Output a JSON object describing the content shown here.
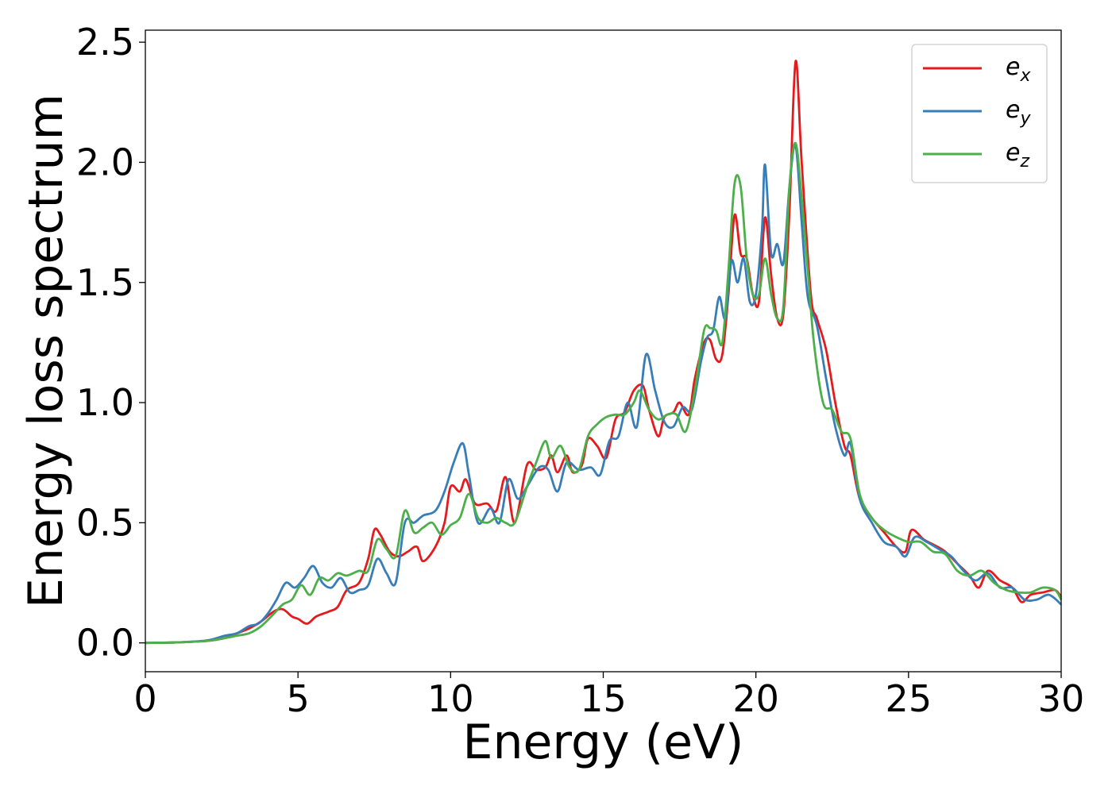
{
  "chart_data": {
    "type": "line",
    "title": "",
    "xlabel": "Energy (eV)",
    "ylabel": "Energy loss spectrum",
    "xlim": [
      0,
      30
    ],
    "ylim": [
      -0.12,
      2.55
    ],
    "xticks": [
      0,
      5,
      10,
      15,
      20,
      25,
      30
    ],
    "xtick_labels": [
      "0",
      "5",
      "10",
      "15",
      "20",
      "25",
      "30"
    ],
    "yticks": [
      0.0,
      0.5,
      1.0,
      1.5,
      2.0,
      2.5
    ],
    "ytick_labels": [
      "0.0",
      "0.5",
      "1.0",
      "1.5",
      "2.0",
      "2.5"
    ],
    "grid": false,
    "legend_position": "top-right",
    "series": [
      {
        "name": "e_x",
        "legend_base": "e",
        "legend_sub": "x",
        "color": "#e41a1c",
        "points": [
          [
            0,
            0
          ],
          [
            1,
            0.002
          ],
          [
            2,
            0.008
          ],
          [
            2.6,
            0.02
          ],
          [
            3,
            0.04
          ],
          [
            3.4,
            0.06
          ],
          [
            3.8,
            0.09
          ],
          [
            4.2,
            0.13
          ],
          [
            4.5,
            0.14
          ],
          [
            4.8,
            0.11
          ],
          [
            5,
            0.1
          ],
          [
            5.3,
            0.08
          ],
          [
            5.6,
            0.11
          ],
          [
            6,
            0.13
          ],
          [
            6.3,
            0.15
          ],
          [
            6.6,
            0.22
          ],
          [
            7,
            0.25
          ],
          [
            7.3,
            0.35
          ],
          [
            7.5,
            0.47
          ],
          [
            7.7,
            0.45
          ],
          [
            8,
            0.38
          ],
          [
            8.3,
            0.36
          ],
          [
            8.6,
            0.38
          ],
          [
            8.9,
            0.4
          ],
          [
            9.1,
            0.34
          ],
          [
            9.5,
            0.4
          ],
          [
            9.8,
            0.5
          ],
          [
            10,
            0.65
          ],
          [
            10.3,
            0.63
          ],
          [
            10.5,
            0.68
          ],
          [
            10.8,
            0.58
          ],
          [
            11.2,
            0.58
          ],
          [
            11.5,
            0.55
          ],
          [
            11.8,
            0.69
          ],
          [
            12.1,
            0.5
          ],
          [
            12.5,
            0.74
          ],
          [
            12.8,
            0.72
          ],
          [
            13.1,
            0.73
          ],
          [
            13.3,
            0.78
          ],
          [
            13.5,
            0.71
          ],
          [
            13.8,
            0.78
          ],
          [
            14,
            0.71
          ],
          [
            14.3,
            0.74
          ],
          [
            14.5,
            0.85
          ],
          [
            14.8,
            0.82
          ],
          [
            15.1,
            0.77
          ],
          [
            15.4,
            0.93
          ],
          [
            15.7,
            0.96
          ],
          [
            16,
            1.05
          ],
          [
            16.3,
            1.07
          ],
          [
            16.5,
            0.97
          ],
          [
            16.8,
            0.86
          ],
          [
            17,
            0.94
          ],
          [
            17.3,
            0.96
          ],
          [
            17.5,
            1.0
          ],
          [
            17.8,
            0.95
          ],
          [
            18,
            1.1
          ],
          [
            18.3,
            1.25
          ],
          [
            18.5,
            1.26
          ],
          [
            18.7,
            1.18
          ],
          [
            18.9,
            1.2
          ],
          [
            19.1,
            1.45
          ],
          [
            19.3,
            1.78
          ],
          [
            19.5,
            1.62
          ],
          [
            19.7,
            1.6
          ],
          [
            19.9,
            1.45
          ],
          [
            20.1,
            1.42
          ],
          [
            20.3,
            1.77
          ],
          [
            20.5,
            1.53
          ],
          [
            20.7,
            1.35
          ],
          [
            20.9,
            1.37
          ],
          [
            21.1,
            1.8
          ],
          [
            21.3,
            2.42
          ],
          [
            21.5,
            2.0
          ],
          [
            21.8,
            1.45
          ],
          [
            22,
            1.35
          ],
          [
            22.3,
            1.22
          ],
          [
            22.6,
            1.0
          ],
          [
            22.9,
            0.82
          ],
          [
            23.1,
            0.78
          ],
          [
            23.4,
            0.6
          ],
          [
            23.8,
            0.52
          ],
          [
            24.2,
            0.46
          ],
          [
            24.6,
            0.4
          ],
          [
            24.9,
            0.38
          ],
          [
            25.1,
            0.47
          ],
          [
            25.5,
            0.43
          ],
          [
            25.8,
            0.41
          ],
          [
            26.2,
            0.38
          ],
          [
            26.6,
            0.33
          ],
          [
            27,
            0.28
          ],
          [
            27.3,
            0.23
          ],
          [
            27.6,
            0.3
          ],
          [
            28,
            0.26
          ],
          [
            28.4,
            0.23
          ],
          [
            28.7,
            0.17
          ],
          [
            29,
            0.2
          ],
          [
            29.4,
            0.21
          ],
          [
            29.8,
            0.22
          ],
          [
            30,
            0.19
          ]
        ]
      },
      {
        "name": "e_y",
        "legend_base": "e",
        "legend_sub": "y",
        "color": "#377eb8",
        "points": [
          [
            0,
            0
          ],
          [
            1,
            0.002
          ],
          [
            2,
            0.01
          ],
          [
            2.6,
            0.03
          ],
          [
            3,
            0.04
          ],
          [
            3.4,
            0.07
          ],
          [
            3.7,
            0.08
          ],
          [
            4,
            0.12
          ],
          [
            4.3,
            0.18
          ],
          [
            4.6,
            0.25
          ],
          [
            4.9,
            0.23
          ],
          [
            5.2,
            0.27
          ],
          [
            5.5,
            0.32
          ],
          [
            5.8,
            0.25
          ],
          [
            6.1,
            0.23
          ],
          [
            6.4,
            0.27
          ],
          [
            6.7,
            0.21
          ],
          [
            7,
            0.22
          ],
          [
            7.3,
            0.24
          ],
          [
            7.6,
            0.35
          ],
          [
            7.9,
            0.29
          ],
          [
            8.2,
            0.25
          ],
          [
            8.5,
            0.5
          ],
          [
            8.8,
            0.5
          ],
          [
            9.1,
            0.53
          ],
          [
            9.5,
            0.55
          ],
          [
            9.8,
            0.63
          ],
          [
            10.1,
            0.75
          ],
          [
            10.4,
            0.83
          ],
          [
            10.6,
            0.7
          ],
          [
            10.9,
            0.5
          ],
          [
            11.3,
            0.56
          ],
          [
            11.6,
            0.5
          ],
          [
            11.9,
            0.68
          ],
          [
            12.2,
            0.6
          ],
          [
            12.5,
            0.65
          ],
          [
            12.9,
            0.73
          ],
          [
            13.2,
            0.72
          ],
          [
            13.5,
            0.63
          ],
          [
            13.8,
            0.75
          ],
          [
            14.2,
            0.72
          ],
          [
            14.6,
            0.73
          ],
          [
            14.9,
            0.7
          ],
          [
            15.2,
            0.84
          ],
          [
            15.5,
            0.86
          ],
          [
            15.8,
            1.0
          ],
          [
            16.1,
            0.9
          ],
          [
            16.4,
            1.2
          ],
          [
            16.7,
            1.05
          ],
          [
            17,
            0.92
          ],
          [
            17.3,
            0.9
          ],
          [
            17.6,
            0.98
          ],
          [
            17.9,
            0.97
          ],
          [
            18.2,
            1.17
          ],
          [
            18.4,
            1.27
          ],
          [
            18.6,
            1.3
          ],
          [
            18.8,
            1.44
          ],
          [
            19.0,
            1.35
          ],
          [
            19.2,
            1.59
          ],
          [
            19.4,
            1.5
          ],
          [
            19.6,
            1.6
          ],
          [
            19.8,
            1.42
          ],
          [
            20.0,
            1.45
          ],
          [
            20.2,
            1.72
          ],
          [
            20.3,
            1.99
          ],
          [
            20.5,
            1.62
          ],
          [
            20.7,
            1.66
          ],
          [
            20.9,
            1.58
          ],
          [
            21.1,
            1.9
          ],
          [
            21.3,
            2.07
          ],
          [
            21.5,
            1.75
          ],
          [
            21.7,
            1.44
          ],
          [
            22,
            1.32
          ],
          [
            22.3,
            1.1
          ],
          [
            22.6,
            0.9
          ],
          [
            22.9,
            0.78
          ],
          [
            23.1,
            0.83
          ],
          [
            23.4,
            0.6
          ],
          [
            23.8,
            0.5
          ],
          [
            24.2,
            0.42
          ],
          [
            24.6,
            0.4
          ],
          [
            24.9,
            0.36
          ],
          [
            25.2,
            0.44
          ],
          [
            25.6,
            0.42
          ],
          [
            26,
            0.39
          ],
          [
            26.4,
            0.36
          ],
          [
            26.8,
            0.3
          ],
          [
            27.2,
            0.26
          ],
          [
            27.6,
            0.29
          ],
          [
            28,
            0.23
          ],
          [
            28.4,
            0.23
          ],
          [
            28.8,
            0.18
          ],
          [
            29.2,
            0.18
          ],
          [
            29.6,
            0.2
          ],
          [
            30,
            0.16
          ]
        ]
      },
      {
        "name": "e_z",
        "legend_base": "e",
        "legend_sub": "z",
        "color": "#4daf4a",
        "points": [
          [
            0,
            0
          ],
          [
            1,
            0.002
          ],
          [
            2,
            0.008
          ],
          [
            2.6,
            0.02
          ],
          [
            3,
            0.03
          ],
          [
            3.4,
            0.04
          ],
          [
            3.8,
            0.07
          ],
          [
            4.2,
            0.12
          ],
          [
            4.5,
            0.16
          ],
          [
            4.8,
            0.18
          ],
          [
            5.1,
            0.24
          ],
          [
            5.4,
            0.2
          ],
          [
            5.7,
            0.27
          ],
          [
            6,
            0.26
          ],
          [
            6.3,
            0.29
          ],
          [
            6.6,
            0.28
          ],
          [
            7,
            0.3
          ],
          [
            7.3,
            0.3
          ],
          [
            7.6,
            0.43
          ],
          [
            7.9,
            0.39
          ],
          [
            8.2,
            0.36
          ],
          [
            8.5,
            0.55
          ],
          [
            8.8,
            0.46
          ],
          [
            9.1,
            0.48
          ],
          [
            9.4,
            0.5
          ],
          [
            9.7,
            0.45
          ],
          [
            10,
            0.49
          ],
          [
            10.3,
            0.52
          ],
          [
            10.6,
            0.62
          ],
          [
            10.9,
            0.52
          ],
          [
            11.2,
            0.5
          ],
          [
            11.5,
            0.52
          ],
          [
            11.8,
            0.5
          ],
          [
            12.1,
            0.5
          ],
          [
            12.5,
            0.65
          ],
          [
            12.8,
            0.75
          ],
          [
            13.1,
            0.84
          ],
          [
            13.3,
            0.77
          ],
          [
            13.6,
            0.82
          ],
          [
            13.9,
            0.73
          ],
          [
            14.2,
            0.72
          ],
          [
            14.5,
            0.86
          ],
          [
            14.8,
            0.91
          ],
          [
            15.1,
            0.94
          ],
          [
            15.4,
            0.95
          ],
          [
            15.7,
            0.95
          ],
          [
            16.0,
            1.0
          ],
          [
            16.2,
            1.05
          ],
          [
            16.5,
            0.97
          ],
          [
            16.8,
            0.93
          ],
          [
            17.1,
            0.95
          ],
          [
            17.4,
            0.95
          ],
          [
            17.7,
            0.88
          ],
          [
            18,
            1.05
          ],
          [
            18.3,
            1.3
          ],
          [
            18.5,
            1.31
          ],
          [
            18.7,
            1.3
          ],
          [
            18.9,
            1.25
          ],
          [
            19.1,
            1.55
          ],
          [
            19.3,
            1.91
          ],
          [
            19.5,
            1.9
          ],
          [
            19.7,
            1.6
          ],
          [
            19.9,
            1.45
          ],
          [
            20.1,
            1.45
          ],
          [
            20.3,
            1.6
          ],
          [
            20.5,
            1.45
          ],
          [
            20.7,
            1.35
          ],
          [
            20.9,
            1.4
          ],
          [
            21.1,
            1.9
          ],
          [
            21.3,
            2.08
          ],
          [
            21.5,
            1.85
          ],
          [
            21.7,
            1.55
          ],
          [
            21.9,
            1.25
          ],
          [
            22.2,
            1.0
          ],
          [
            22.5,
            0.97
          ],
          [
            22.8,
            0.88
          ],
          [
            23.1,
            0.85
          ],
          [
            23.4,
            0.62
          ],
          [
            23.8,
            0.52
          ],
          [
            24.2,
            0.47
          ],
          [
            24.6,
            0.44
          ],
          [
            25,
            0.42
          ],
          [
            25.4,
            0.42
          ],
          [
            25.8,
            0.38
          ],
          [
            26.2,
            0.37
          ],
          [
            26.6,
            0.3
          ],
          [
            27,
            0.28
          ],
          [
            27.4,
            0.3
          ],
          [
            27.8,
            0.25
          ],
          [
            28.2,
            0.22
          ],
          [
            28.6,
            0.21
          ],
          [
            29,
            0.21
          ],
          [
            29.4,
            0.23
          ],
          [
            29.8,
            0.22
          ],
          [
            30,
            0.18
          ]
        ]
      }
    ]
  }
}
